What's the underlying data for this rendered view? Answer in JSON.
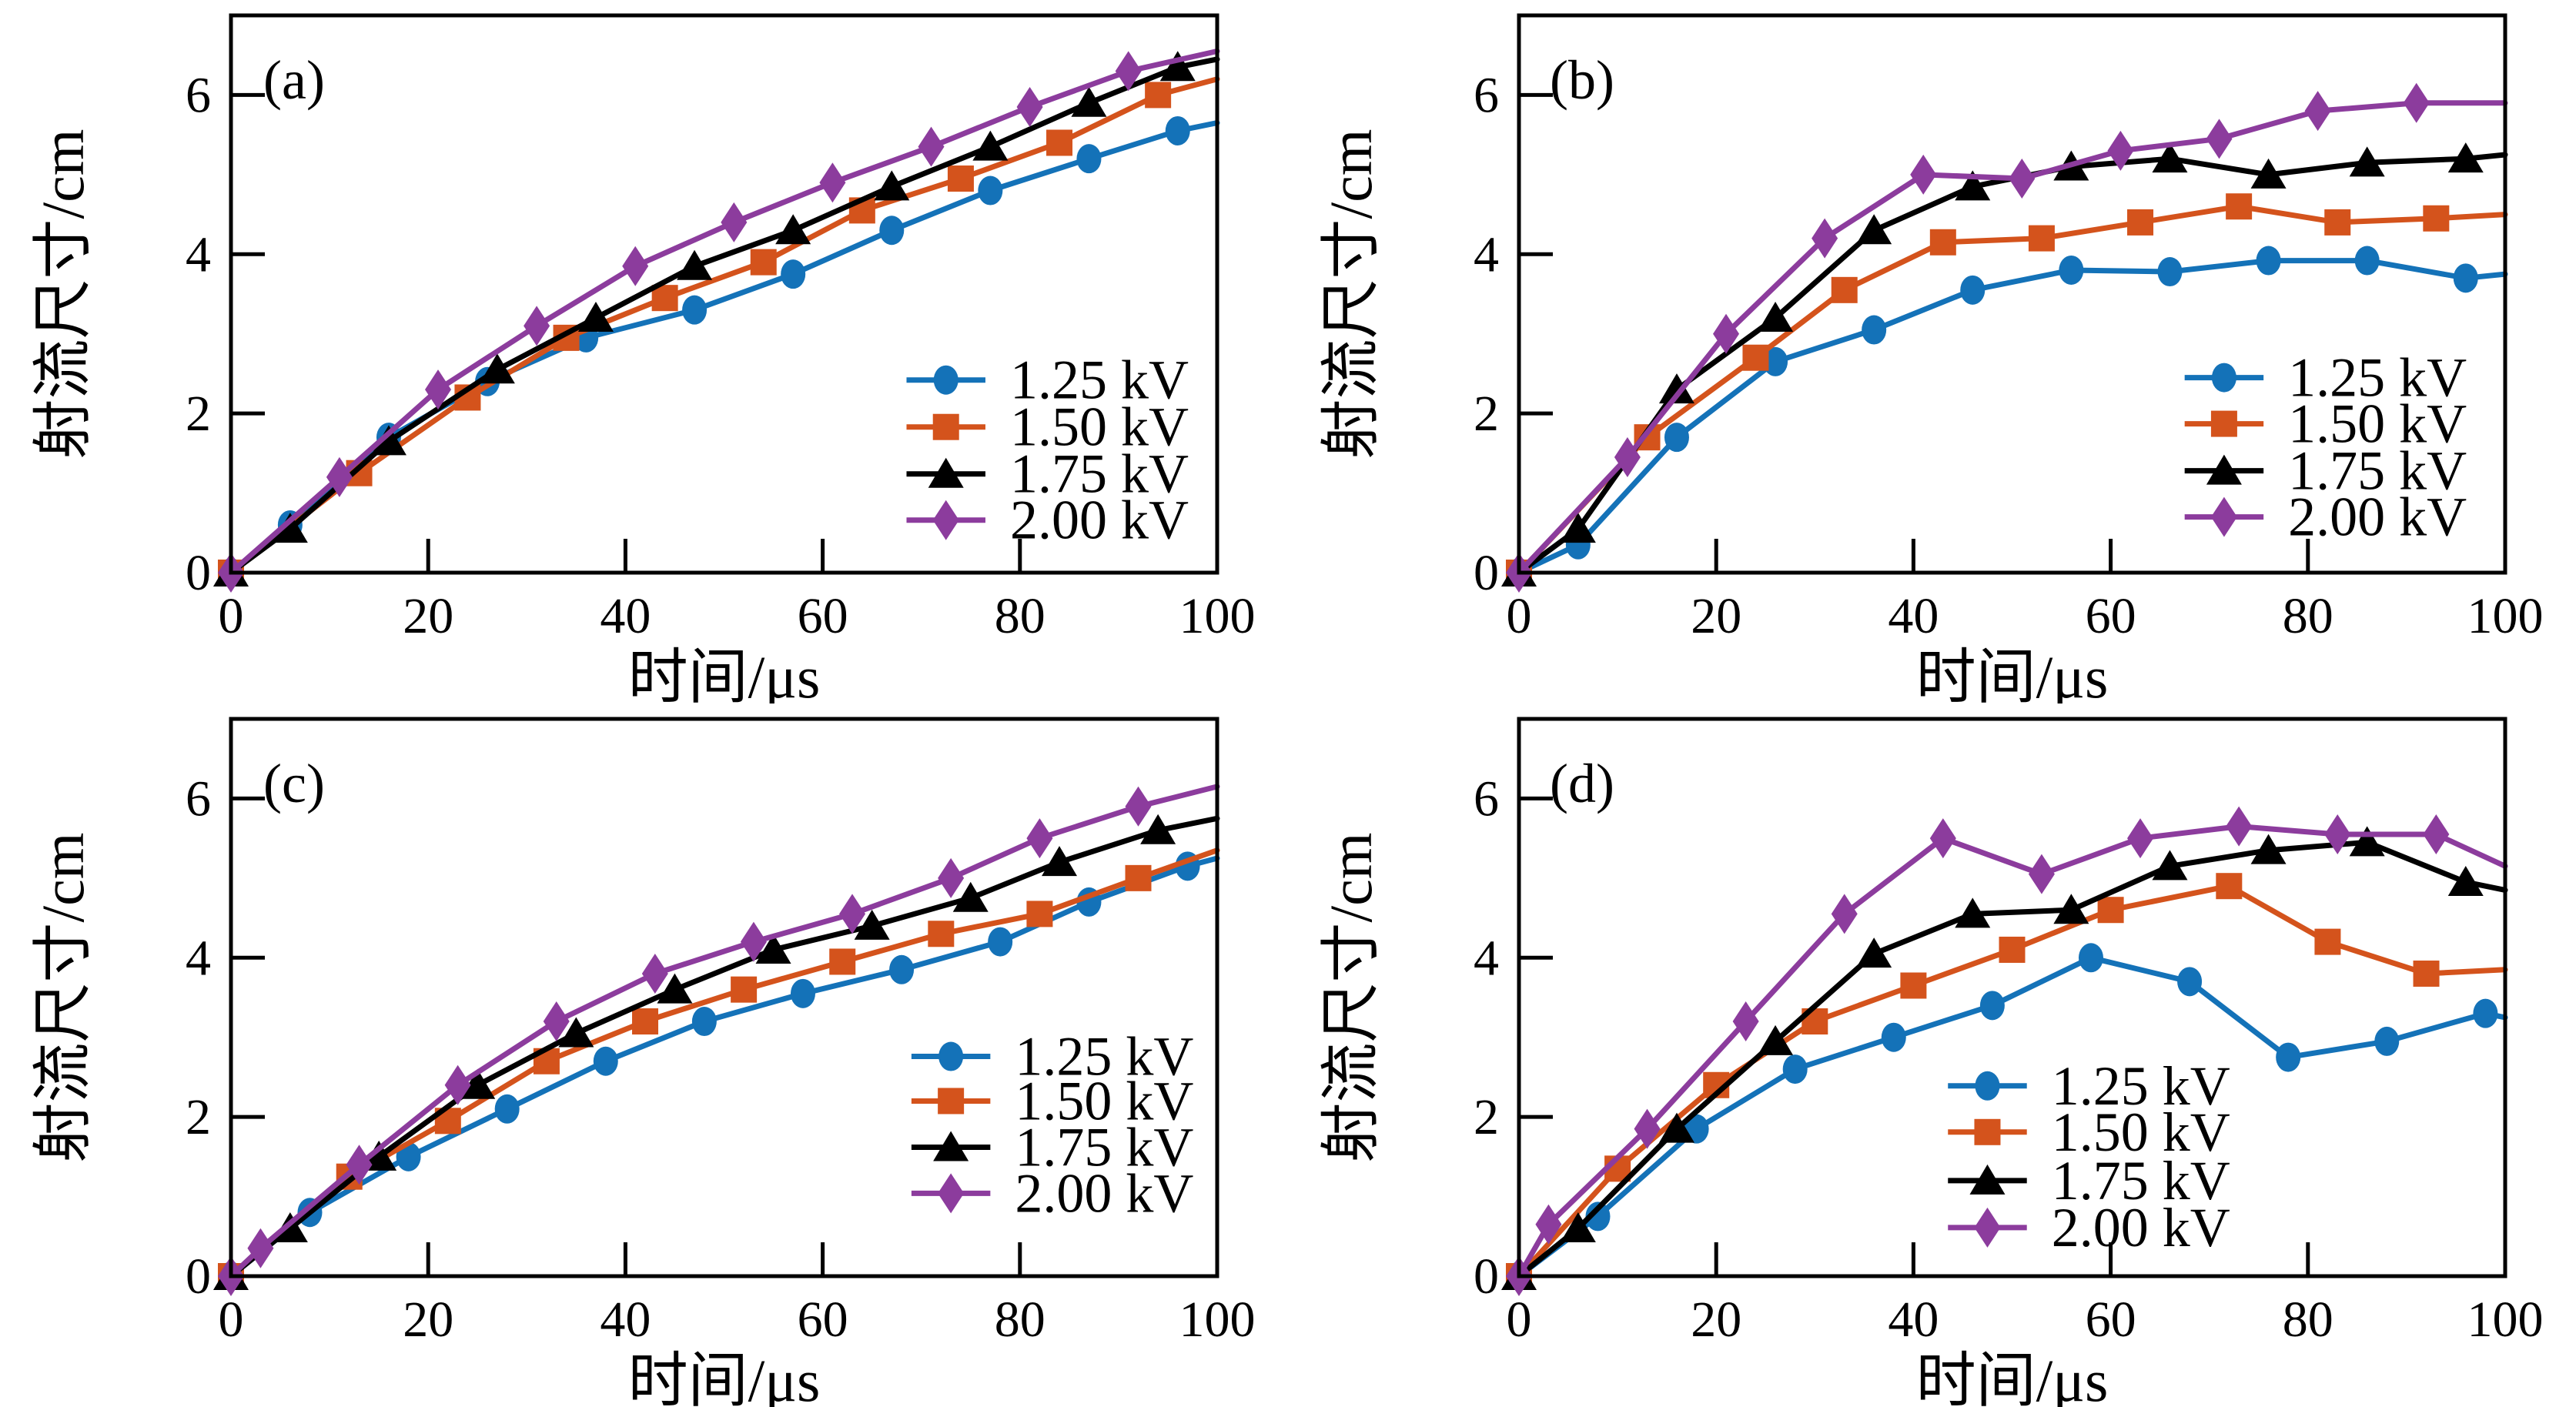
{
  "figure": {
    "background": "#ffffff",
    "axis_color": "#000000",
    "xlabel": "时间/μs",
    "ylabel": "射流尺寸/cm",
    "legend_labels": [
      "1.25 kV",
      "1.50 kV",
      "1.75 kV",
      "2.00 kV"
    ],
    "series_colors": [
      "#1472b8",
      "#d4531c",
      "#000000",
      "#8c3c9d"
    ],
    "series_markers": [
      "circle",
      "square",
      "triangle",
      "diamond"
    ]
  },
  "chart_data": [
    {
      "type": "line",
      "panel_tag": "(a)",
      "xlabel": "时间/μs",
      "ylabel": "射流尺寸/cm",
      "xlim": [
        0,
        100
      ],
      "ylim": [
        0,
        7
      ],
      "xticks": [
        0,
        20,
        40,
        60,
        80,
        100
      ],
      "yticks": [
        0,
        2,
        4,
        6
      ],
      "grid": false,
      "legend_position": "right-lower",
      "legend_layout": {
        "line_x": [
          68.5,
          76.5
        ],
        "text_x": 79,
        "rows_y": [
          2.42,
          1.83,
          1.24,
          0.66
        ]
      },
      "series": [
        {
          "name": "1.25 kV",
          "marker": "circle",
          "color": "#1472b8",
          "points": [
            [
              0,
              0
            ],
            [
              6,
              0.6
            ],
            [
              16,
              1.7
            ],
            [
              26,
              2.4
            ],
            [
              36,
              2.95
            ],
            [
              47,
              3.3
            ],
            [
              57,
              3.75
            ],
            [
              67,
              4.3
            ],
            [
              77,
              4.8
            ],
            [
              87,
              5.2
            ],
            [
              96,
              5.55
            ],
            [
              100,
              5.65
            ]
          ]
        },
        {
          "name": "1.50 kV",
          "marker": "square",
          "color": "#d4531c",
          "points": [
            [
              0,
              0
            ],
            [
              13,
              1.25
            ],
            [
              24,
              2.2
            ],
            [
              34,
              2.95
            ],
            [
              44,
              3.45
            ],
            [
              54,
              3.9
            ],
            [
              64,
              4.55
            ],
            [
              74,
              4.95
            ],
            [
              84,
              5.4
            ],
            [
              94,
              6.0
            ],
            [
              100,
              6.2
            ]
          ]
        },
        {
          "name": "1.75 kV",
          "marker": "triangle",
          "color": "#000000",
          "points": [
            [
              0,
              0
            ],
            [
              6,
              0.55
            ],
            [
              16,
              1.65
            ],
            [
              27,
              2.55
            ],
            [
              37,
              3.2
            ],
            [
              47,
              3.85
            ],
            [
              57,
              4.3
            ],
            [
              67,
              4.85
            ],
            [
              77,
              5.35
            ],
            [
              87,
              5.9
            ],
            [
              96,
              6.35
            ],
            [
              100,
              6.45
            ]
          ]
        },
        {
          "name": "2.00 kV",
          "marker": "diamond",
          "color": "#8c3c9d",
          "points": [
            [
              0,
              0
            ],
            [
              11,
              1.2
            ],
            [
              21,
              2.3
            ],
            [
              31,
              3.1
            ],
            [
              41,
              3.85
            ],
            [
              51,
              4.4
            ],
            [
              61,
              4.9
            ],
            [
              71,
              5.35
            ],
            [
              81,
              5.85
            ],
            [
              91,
              6.3
            ],
            [
              100,
              6.55
            ]
          ]
        }
      ]
    },
    {
      "type": "line",
      "panel_tag": "(b)",
      "xlabel": "时间/μs",
      "ylabel": "射流尺寸/cm",
      "xlim": [
        0,
        100
      ],
      "ylim": [
        0,
        7
      ],
      "xticks": [
        0,
        20,
        40,
        60,
        80,
        100
      ],
      "yticks": [
        0,
        2,
        4,
        6
      ],
      "grid": false,
      "legend_position": "right-lower",
      "legend_layout": {
        "line_x": [
          67.5,
          75.5
        ],
        "text_x": 78,
        "rows_y": [
          2.45,
          1.87,
          1.28,
          0.7
        ]
      },
      "series": [
        {
          "name": "1.25 kV",
          "marker": "circle",
          "color": "#1472b8",
          "points": [
            [
              0,
              0
            ],
            [
              6,
              0.35
            ],
            [
              16,
              1.7
            ],
            [
              26,
              2.65
            ],
            [
              36,
              3.05
            ],
            [
              46,
              3.55
            ],
            [
              56,
              3.8
            ],
            [
              66,
              3.78
            ],
            [
              76,
              3.92
            ],
            [
              86,
              3.92
            ],
            [
              96,
              3.7
            ],
            [
              100,
              3.75
            ]
          ]
        },
        {
          "name": "1.50 kV",
          "marker": "square",
          "color": "#d4531c",
          "points": [
            [
              0,
              0
            ],
            [
              13,
              1.7
            ],
            [
              24,
              2.7
            ],
            [
              33,
              3.55
            ],
            [
              43,
              4.15
            ],
            [
              53,
              4.2
            ],
            [
              63,
              4.4
            ],
            [
              73,
              4.6
            ],
            [
              83,
              4.4
            ],
            [
              93,
              4.45
            ],
            [
              100,
              4.5
            ]
          ]
        },
        {
          "name": "1.75 kV",
          "marker": "triangle",
          "color": "#000000",
          "points": [
            [
              0,
              0
            ],
            [
              6,
              0.55
            ],
            [
              16,
              2.3
            ],
            [
              26,
              3.2
            ],
            [
              36,
              4.3
            ],
            [
              46,
              4.85
            ],
            [
              56,
              5.1
            ],
            [
              66,
              5.2
            ],
            [
              76,
              5.0
            ],
            [
              86,
              5.15
            ],
            [
              96,
              5.2
            ],
            [
              100,
              5.25
            ]
          ]
        },
        {
          "name": "2.00 kV",
          "marker": "diamond",
          "color": "#8c3c9d",
          "points": [
            [
              0,
              0
            ],
            [
              11,
              1.45
            ],
            [
              21,
              3.0
            ],
            [
              31,
              4.2
            ],
            [
              41,
              5.0
            ],
            [
              51,
              4.95
            ],
            [
              61,
              5.3
            ],
            [
              71,
              5.45
            ],
            [
              81,
              5.8
            ],
            [
              91,
              5.9
            ],
            [
              100,
              5.9
            ]
          ]
        }
      ]
    },
    {
      "type": "line",
      "panel_tag": "(c)",
      "xlabel": "时间/μs",
      "ylabel": "射流尺寸/cm",
      "xlim": [
        0,
        100
      ],
      "ylim": [
        0,
        7
      ],
      "xticks": [
        0,
        20,
        40,
        60,
        80,
        100
      ],
      "yticks": [
        0,
        2,
        4,
        6
      ],
      "grid": false,
      "legend_position": "right-lower",
      "legend_layout": {
        "line_x": [
          69,
          77
        ],
        "text_x": 79.5,
        "rows_y": [
          2.76,
          2.2,
          1.62,
          1.04
        ]
      },
      "series": [
        {
          "name": "1.25 kV",
          "marker": "circle",
          "color": "#1472b8",
          "points": [
            [
              0,
              0
            ],
            [
              8,
              0.8
            ],
            [
              18,
              1.5
            ],
            [
              28,
              2.1
            ],
            [
              38,
              2.7
            ],
            [
              48,
              3.2
            ],
            [
              58,
              3.55
            ],
            [
              68,
              3.85
            ],
            [
              78,
              4.2
            ],
            [
              87,
              4.7
            ],
            [
              97,
              5.15
            ],
            [
              100,
              5.25
            ]
          ]
        },
        {
          "name": "1.50 kV",
          "marker": "square",
          "color": "#d4531c",
          "points": [
            [
              0,
              0
            ],
            [
              12,
              1.25
            ],
            [
              22,
              1.95
            ],
            [
              32,
              2.7
            ],
            [
              42,
              3.2
            ],
            [
              52,
              3.6
            ],
            [
              62,
              3.95
            ],
            [
              72,
              4.3
            ],
            [
              82,
              4.55
            ],
            [
              92,
              5.0
            ],
            [
              100,
              5.35
            ]
          ]
        },
        {
          "name": "1.75 kV",
          "marker": "triangle",
          "color": "#000000",
          "points": [
            [
              0,
              0
            ],
            [
              6,
              0.6
            ],
            [
              15,
              1.5
            ],
            [
              25,
              2.4
            ],
            [
              35,
              3.05
            ],
            [
              45,
              3.6
            ],
            [
              55,
              4.1
            ],
            [
              65,
              4.4
            ],
            [
              75,
              4.75
            ],
            [
              84,
              5.2
            ],
            [
              94,
              5.6
            ],
            [
              100,
              5.75
            ]
          ]
        },
        {
          "name": "2.00 kV",
          "marker": "diamond",
          "color": "#8c3c9d",
          "points": [
            [
              0,
              0
            ],
            [
              3,
              0.35
            ],
            [
              13,
              1.4
            ],
            [
              23,
              2.4
            ],
            [
              33,
              3.2
            ],
            [
              43,
              3.8
            ],
            [
              53,
              4.2
            ],
            [
              63,
              4.55
            ],
            [
              73,
              5.0
            ],
            [
              82,
              5.5
            ],
            [
              92,
              5.9
            ],
            [
              100,
              6.15
            ]
          ]
        }
      ]
    },
    {
      "type": "line",
      "panel_tag": "(d)",
      "xlabel": "时间/μs",
      "ylabel": "射流尺寸/cm",
      "xlim": [
        0,
        100
      ],
      "ylim": [
        0,
        7
      ],
      "xticks": [
        0,
        20,
        40,
        60,
        80,
        100
      ],
      "yticks": [
        0,
        2,
        4,
        6
      ],
      "grid": false,
      "legend_position": "center-lower",
      "legend_layout": {
        "line_x": [
          43.5,
          51.5
        ],
        "text_x": 54,
        "rows_y": [
          2.39,
          1.81,
          1.2,
          0.61
        ]
      },
      "series": [
        {
          "name": "1.25 kV",
          "marker": "circle",
          "color": "#1472b8",
          "points": [
            [
              0,
              0
            ],
            [
              8,
              0.75
            ],
            [
              18,
              1.85
            ],
            [
              28,
              2.6
            ],
            [
              38,
              3.0
            ],
            [
              48,
              3.4
            ],
            [
              58,
              4.0
            ],
            [
              68,
              3.7
            ],
            [
              78,
              2.75
            ],
            [
              88,
              2.95
            ],
            [
              98,
              3.3
            ],
            [
              100,
              3.25
            ]
          ]
        },
        {
          "name": "1.50 kV",
          "marker": "square",
          "color": "#d4531c",
          "points": [
            [
              0,
              0
            ],
            [
              10,
              1.35
            ],
            [
              20,
              2.4
            ],
            [
              30,
              3.2
            ],
            [
              40,
              3.65
            ],
            [
              50,
              4.1
            ],
            [
              60,
              4.6
            ],
            [
              72,
              4.9
            ],
            [
              82,
              4.2
            ],
            [
              92,
              3.8
            ],
            [
              100,
              3.85
            ]
          ]
        },
        {
          "name": "1.75 kV",
          "marker": "triangle",
          "color": "#000000",
          "points": [
            [
              0,
              0
            ],
            [
              6,
              0.6
            ],
            [
              16,
              1.85
            ],
            [
              26,
              2.95
            ],
            [
              36,
              4.05
            ],
            [
              46,
              4.55
            ],
            [
              56,
              4.6
            ],
            [
              66,
              5.15
            ],
            [
              76,
              5.35
            ],
            [
              86,
              5.45
            ],
            [
              96,
              4.95
            ],
            [
              100,
              4.85
            ]
          ]
        },
        {
          "name": "2.00 kV",
          "marker": "diamond",
          "color": "#8c3c9d",
          "points": [
            [
              0,
              0
            ],
            [
              3,
              0.65
            ],
            [
              13,
              1.85
            ],
            [
              23,
              3.2
            ],
            [
              33,
              4.55
            ],
            [
              43,
              5.5
            ],
            [
              53,
              5.05
            ],
            [
              63,
              5.5
            ],
            [
              73,
              5.65
            ],
            [
              83,
              5.55
            ],
            [
              93,
              5.55
            ],
            [
              100,
              5.15
            ]
          ]
        }
      ]
    }
  ]
}
